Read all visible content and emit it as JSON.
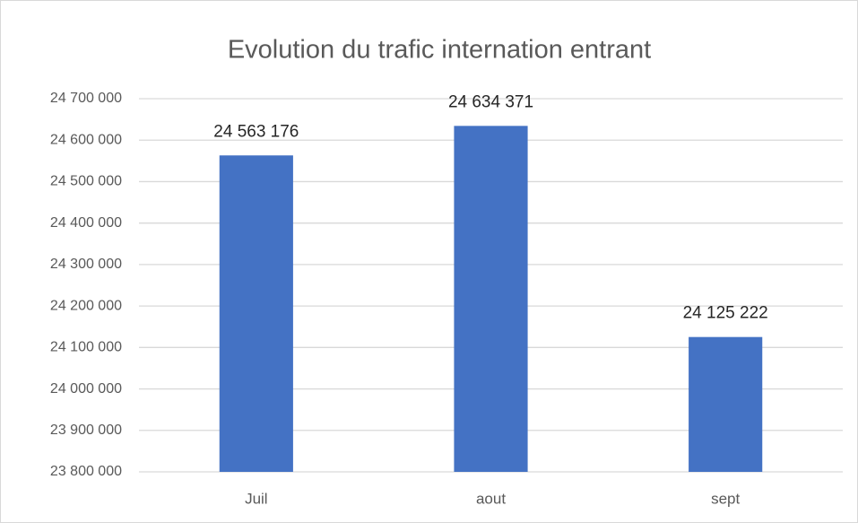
{
  "chart_data": {
    "type": "bar",
    "title": "Evolution du trafic internation entrant",
    "categories": [
      "Juil",
      "aout",
      "sept"
    ],
    "values": [
      24563176,
      24634371,
      24125222
    ],
    "value_labels": [
      "24 563 176",
      "24 634 371",
      "24 125 222"
    ],
    "color": "#4472c4",
    "ylim": [
      23800000,
      24700000
    ],
    "yticks": [
      {
        "value": 23800000,
        "label": "23 800 000"
      },
      {
        "value": 23900000,
        "label": "23 900 000"
      },
      {
        "value": 24000000,
        "label": "24 000 000"
      },
      {
        "value": 24100000,
        "label": "24 100 000"
      },
      {
        "value": 24200000,
        "label": "24 200 000"
      },
      {
        "value": 24300000,
        "label": "24 300 000"
      },
      {
        "value": 24400000,
        "label": "24 400 000"
      },
      {
        "value": 24500000,
        "label": "24 500 000"
      },
      {
        "value": 24600000,
        "label": "24 600 000"
      },
      {
        "value": 24700000,
        "label": "24 700 000"
      }
    ],
    "grid": true
  }
}
